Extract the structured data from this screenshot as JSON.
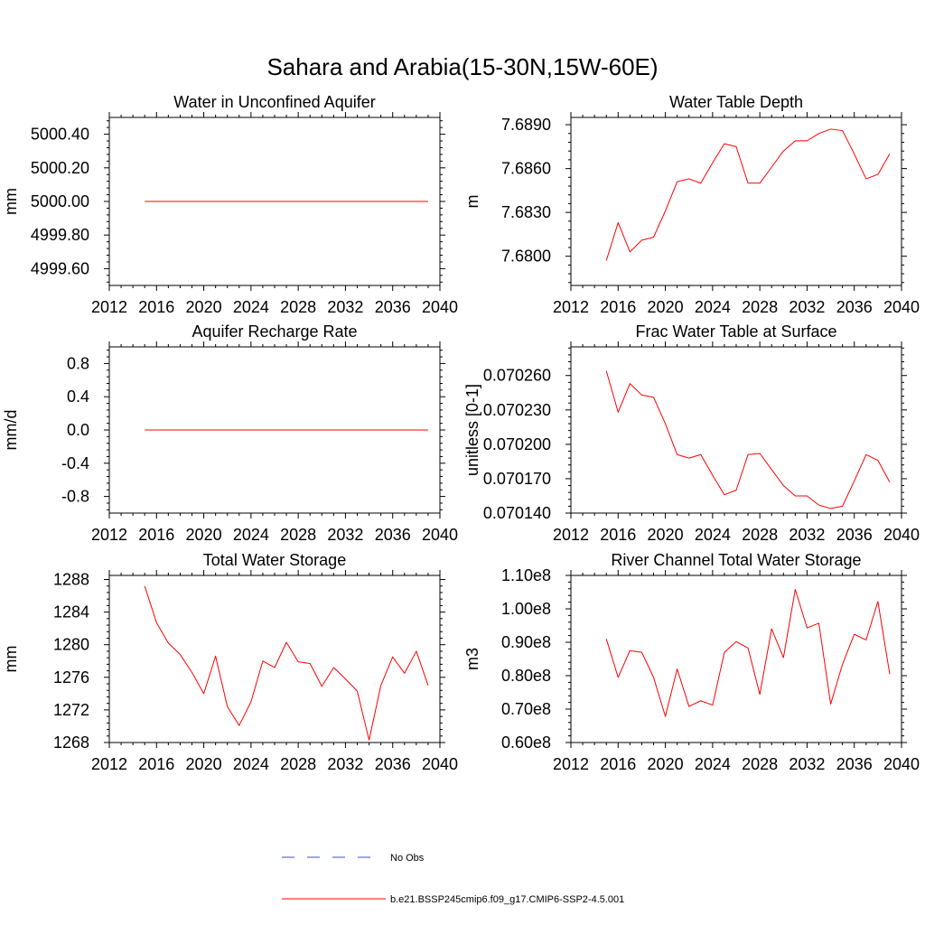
{
  "figure": {
    "title": "Sahara and Arabia(15-30N,15W-60E)"
  },
  "legend": {
    "entries": [
      {
        "label": "No Obs",
        "color": "#3b4bd1",
        "dash": "dashed"
      },
      {
        "label": "b.e21.BSSP245cmip6.f09_g17.CMIP6-SSP2-4.5.001",
        "color": "#ff0000",
        "dash": "solid"
      }
    ]
  },
  "chart_data": [
    {
      "type": "line",
      "title": "Water in Unconfined Aquifer",
      "ylabel": "mm",
      "xlim": [
        2012,
        2040
      ],
      "ylim": [
        4999.5,
        5000.5
      ],
      "xticks": [
        2012,
        2016,
        2020,
        2024,
        2028,
        2032,
        2036,
        2040
      ],
      "xtick_labels": [
        "2012",
        "2016",
        "2020",
        "2024",
        "2028",
        "2032",
        "2036",
        "2040"
      ],
      "yticks": [
        4999.6,
        4999.8,
        5000.0,
        5000.2,
        5000.4
      ],
      "ytick_labels": [
        "4999.60",
        "4999.80",
        "5000.00",
        "5000.20",
        "5000.40"
      ],
      "grid": false,
      "series": [
        {
          "color": "#ff0000",
          "x": [
            2015,
            2016,
            2017,
            2018,
            2019,
            2020,
            2021,
            2022,
            2023,
            2024,
            2025,
            2026,
            2027,
            2028,
            2029,
            2030,
            2031,
            2032,
            2033,
            2034,
            2035,
            2036,
            2037,
            2038,
            2039
          ],
          "y": [
            5000,
            5000,
            5000,
            5000,
            5000,
            5000,
            5000,
            5000,
            5000,
            5000,
            5000,
            5000,
            5000,
            5000,
            5000,
            5000,
            5000,
            5000,
            5000,
            5000,
            5000,
            5000,
            5000,
            5000,
            5000
          ]
        }
      ]
    },
    {
      "type": "line",
      "title": "Water Table Depth",
      "ylabel": "m",
      "xlim": [
        2012,
        2040
      ],
      "ylim": [
        7.678,
        7.6895
      ],
      "xticks": [
        2012,
        2016,
        2020,
        2024,
        2028,
        2032,
        2036,
        2040
      ],
      "xtick_labels": [
        "2012",
        "2016",
        "2020",
        "2024",
        "2028",
        "2032",
        "2036",
        "2040"
      ],
      "yticks": [
        7.68,
        7.683,
        7.686,
        7.689
      ],
      "ytick_labels": [
        "7.6800",
        "7.6830",
        "7.6860",
        "7.6890"
      ],
      "grid": false,
      "series": [
        {
          "color": "#ff0000",
          "x": [
            2015,
            2016,
            2017,
            2018,
            2019,
            2020,
            2021,
            2022,
            2023,
            2024,
            2025,
            2026,
            2027,
            2028,
            2029,
            2030,
            2031,
            2032,
            2033,
            2034,
            2035,
            2036,
            2037,
            2038,
            2039
          ],
          "y": [
            7.6797,
            7.6823,
            7.6803,
            7.6811,
            7.6813,
            7.6831,
            7.6851,
            7.6853,
            7.685,
            7.6864,
            7.6877,
            7.6875,
            7.685,
            7.685,
            7.6861,
            7.6872,
            7.6879,
            7.6879,
            7.6884,
            7.6887,
            7.6886,
            7.687,
            7.6853,
            7.6856,
            7.687
          ]
        }
      ]
    },
    {
      "type": "line",
      "title": "Aquifer Recharge Rate",
      "ylabel": "mm/d",
      "xlim": [
        2012,
        2040
      ],
      "ylim": [
        -1.0,
        1.0
      ],
      "xticks": [
        2012,
        2016,
        2020,
        2024,
        2028,
        2032,
        2036,
        2040
      ],
      "xtick_labels": [
        "2012",
        "2016",
        "2020",
        "2024",
        "2028",
        "2032",
        "2036",
        "2040"
      ],
      "yticks": [
        -0.8,
        -0.4,
        0.0,
        0.4,
        0.8
      ],
      "ytick_labels": [
        "-0.8",
        "-0.4",
        "0.0",
        "0.4",
        "0.8"
      ],
      "grid": false,
      "series": [
        {
          "color": "#ff0000",
          "x": [
            2015,
            2016,
            2017,
            2018,
            2019,
            2020,
            2021,
            2022,
            2023,
            2024,
            2025,
            2026,
            2027,
            2028,
            2029,
            2030,
            2031,
            2032,
            2033,
            2034,
            2035,
            2036,
            2037,
            2038,
            2039
          ],
          "y": [
            0,
            0,
            0,
            0,
            0,
            0,
            0,
            0,
            0,
            0,
            0,
            0,
            0,
            0,
            0,
            0,
            0,
            0,
            0,
            0,
            0,
            0,
            0,
            0,
            0
          ]
        }
      ]
    },
    {
      "type": "line",
      "title": "Frac Water Table at Surface",
      "ylabel": "unitless [0-1]",
      "xlim": [
        2012,
        2040
      ],
      "ylim": [
        0.07014,
        0.070285
      ],
      "xticks": [
        2012,
        2016,
        2020,
        2024,
        2028,
        2032,
        2036,
        2040
      ],
      "xtick_labels": [
        "2012",
        "2016",
        "2020",
        "2024",
        "2028",
        "2032",
        "2036",
        "2040"
      ],
      "yticks": [
        0.07014,
        0.07017,
        0.0702,
        0.07023,
        0.07026
      ],
      "ytick_labels": [
        "0.070140",
        "0.070170",
        "0.070200",
        "0.070230",
        "0.070260"
      ],
      "grid": false,
      "series": [
        {
          "color": "#ff0000",
          "x": [
            2015,
            2016,
            2017,
            2018,
            2019,
            2020,
            2021,
            2022,
            2023,
            2024,
            2025,
            2026,
            2027,
            2028,
            2029,
            2030,
            2031,
            2032,
            2033,
            2034,
            2035,
            2036,
            2037,
            2038,
            2039
          ],
          "y": [
            0.070264,
            0.070228,
            0.070253,
            0.070243,
            0.070241,
            0.070218,
            0.070191,
            0.070188,
            0.070191,
            0.070173,
            0.070156,
            0.07016,
            0.070191,
            0.070192,
            0.070178,
            0.070164,
            0.070155,
            0.070155,
            0.070147,
            0.070144,
            0.070146,
            0.070168,
            0.070191,
            0.070186,
            0.070167
          ]
        }
      ]
    },
    {
      "type": "line",
      "title": "Total Water Storage",
      "ylabel": "mm",
      "xlim": [
        2012,
        2040
      ],
      "ylim": [
        1268,
        1288.5
      ],
      "xticks": [
        2012,
        2016,
        2020,
        2024,
        2028,
        2032,
        2036,
        2040
      ],
      "xtick_labels": [
        "2012",
        "2016",
        "2020",
        "2024",
        "2028",
        "2032",
        "2036",
        "2040"
      ],
      "yticks": [
        1268,
        1272,
        1276,
        1280,
        1284,
        1288
      ],
      "ytick_labels": [
        "1268",
        "1272",
        "1276",
        "1280",
        "1284",
        "1288"
      ],
      "grid": false,
      "series": [
        {
          "color": "#ff0000",
          "x": [
            2015,
            2016,
            2017,
            2018,
            2019,
            2020,
            2021,
            2022,
            2023,
            2024,
            2025,
            2026,
            2027,
            2028,
            2029,
            2030,
            2031,
            2032,
            2033,
            2034,
            2035,
            2036,
            2037,
            2038,
            2039
          ],
          "y": [
            1287.2,
            1282.7,
            1280.2,
            1278.8,
            1276.6,
            1274.0,
            1278.6,
            1272.4,
            1270.1,
            1273.0,
            1278.0,
            1277.2,
            1280.3,
            1277.9,
            1277.7,
            1274.9,
            1277.2,
            1275.8,
            1274.3,
            1268.3,
            1275.0,
            1278.5,
            1276.5,
            1279.2,
            1275.0
          ]
        }
      ]
    },
    {
      "type": "line",
      "title": "River Channel Total Water Storage",
      "ylabel": "m3",
      "xlim": [
        2012,
        2040
      ],
      "ylim": [
        60000000,
        110000000
      ],
      "xticks": [
        2012,
        2016,
        2020,
        2024,
        2028,
        2032,
        2036,
        2040
      ],
      "xtick_labels": [
        "2012",
        "2016",
        "2020",
        "2024",
        "2028",
        "2032",
        "2036",
        "2040"
      ],
      "yticks": [
        60000000,
        70000000,
        80000000,
        90000000,
        100000000,
        110000000
      ],
      "ytick_labels": [
        "0.60e8",
        "0.70e8",
        "0.80e8",
        "0.90e8",
        "1.00e8",
        "1.10e8"
      ],
      "grid": false,
      "series": [
        {
          "color": "#ff0000",
          "x": [
            2015,
            2016,
            2017,
            2018,
            2019,
            2020,
            2021,
            2022,
            2023,
            2024,
            2025,
            2026,
            2027,
            2028,
            2029,
            2030,
            2031,
            2032,
            2033,
            2034,
            2035,
            2036,
            2037,
            2038,
            2039
          ],
          "y": [
            91000000,
            79500000,
            87500000,
            87000000,
            79500000,
            67800000,
            82000000,
            70800000,
            72500000,
            71200000,
            87000000,
            90200000,
            88300000,
            74400000,
            94000000,
            85400000,
            105800000,
            94300000,
            95700000,
            71500000,
            83400000,
            92400000,
            90700000,
            102200000,
            80500000
          ]
        }
      ]
    }
  ]
}
